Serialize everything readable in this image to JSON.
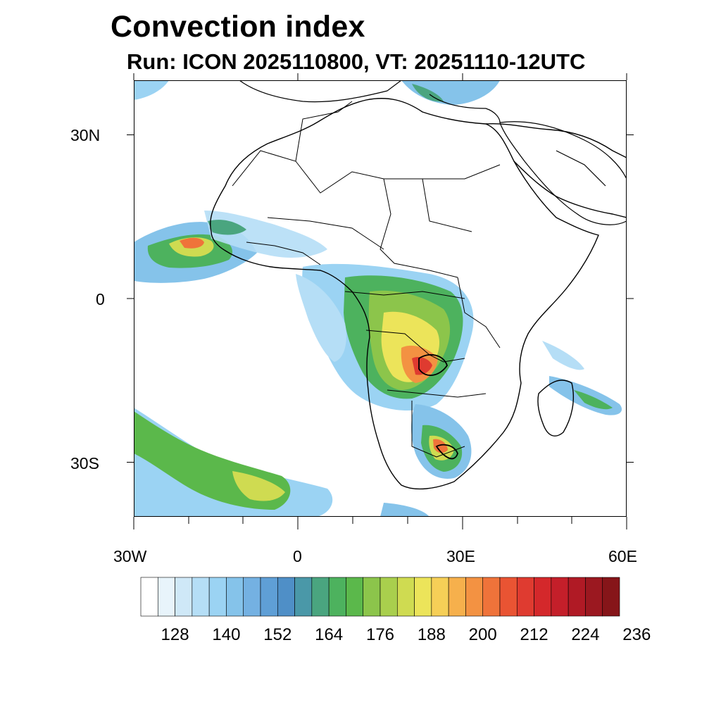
{
  "title": "Convection index",
  "subtitle": "Run: ICON 2025110800,  VT: 20251110-12UTC",
  "map": {
    "lat_labels": [
      "30N",
      "0",
      "30S"
    ],
    "lon_labels": [
      "30W",
      "0",
      "30E",
      "60E"
    ],
    "extent": {
      "lon_min": -30,
      "lon_max": 60,
      "lat_min": -40,
      "lat_max": 40
    }
  },
  "colorbar": {
    "labels": [
      "128",
      "140",
      "152",
      "164",
      "176",
      "188",
      "200",
      "212",
      "224",
      "236"
    ],
    "colors": [
      "#ffffff",
      "#e8f4fb",
      "#cfe8f7",
      "#b5def6",
      "#9bd3f3",
      "#85c3ea",
      "#74b1e2",
      "#5f9fd6",
      "#4f8fc7",
      "#4a98a8",
      "#4aa57f",
      "#4db25e",
      "#5bb84b",
      "#8cc54b",
      "#a9cf4d",
      "#cfdb51",
      "#ece45a",
      "#f6cf57",
      "#f6b04c",
      "#f39242",
      "#ef733a",
      "#e95433",
      "#df3b30",
      "#d4282b",
      "#c41f2a",
      "#b01a25",
      "#9b1820",
      "#861519"
    ]
  }
}
